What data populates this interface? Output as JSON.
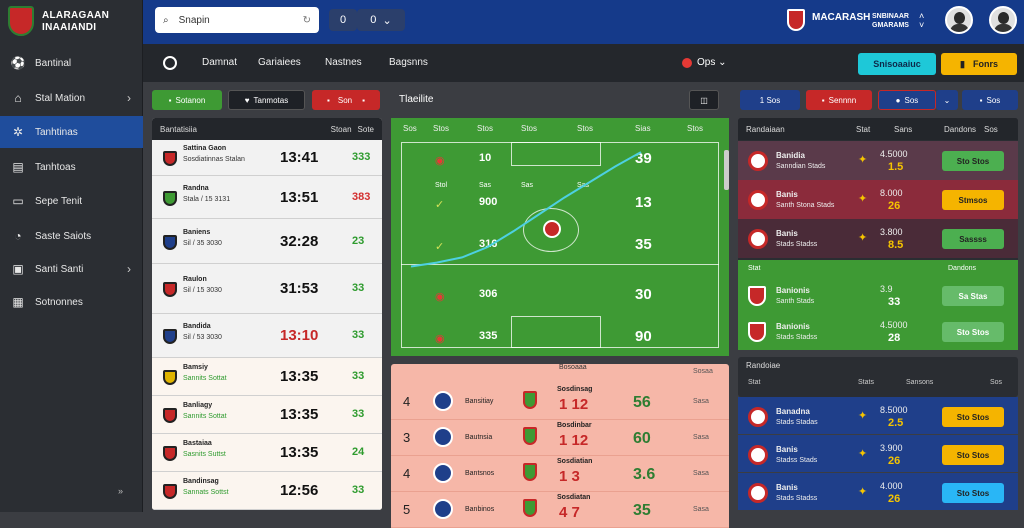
{
  "app": {
    "line1": "ALARAGAAN",
    "line2": "INAAIANDI"
  },
  "sidebar": {
    "items": [
      {
        "label": "Bantinal"
      },
      {
        "label": "Stal Mation"
      },
      {
        "label": "Tanhtinas"
      },
      {
        "label": "Tanhtoas"
      },
      {
        "label": "Sepe Tenit"
      },
      {
        "label": "Saste Saiots"
      },
      {
        "label": "Santi Santi"
      },
      {
        "label": "Sotnonnes"
      }
    ]
  },
  "search": {
    "placeholder": "Snapin"
  },
  "topbar": {
    "brand_title": "MACARASH",
    "brand_sub": "SNBINAAR",
    "brand_sub2": "GMARAMS",
    "icon_btn1": "0",
    "icon_btn2": "0"
  },
  "tabs": [
    {
      "label": "Damnat"
    },
    {
      "label": "Gariaiees"
    },
    {
      "label": "Nastnes"
    },
    {
      "label": "Bagsnns"
    }
  ],
  "tools": {
    "live_label": "Ops",
    "btn_cyan": "Snisoaaiuc",
    "btn_yellow": "Fonrs"
  },
  "filters": {
    "green": "Sotanon",
    "dark": "Tanmotas",
    "red": "Son",
    "title": "Tlaeilite",
    "r1": "1 Sos",
    "r2": "Sennnn",
    "r3": "Sos",
    "r4": "Sos"
  },
  "left_panel": {
    "head_left": "Bantatisiia",
    "head_right": "Stoan",
    "head_right2": "Sote",
    "rows": [
      {
        "team": "Sattina Gaon",
        "sub": "Sosdiatinnas Stalan",
        "score": "13:41",
        "odds": "333",
        "odds_color": "#2e9b2e"
      },
      {
        "team": "Randna",
        "sub": "Stala / 15 3131",
        "score": "13:51",
        "odds": "383",
        "odds_color": "#d32f2f"
      },
      {
        "team": "Baniens",
        "sub": "Sil / 35 3030",
        "score": "32:28",
        "odds": "23",
        "odds_color": "#2e9b2e"
      },
      {
        "team": "Raulon",
        "sub": "Sil / 15 3030",
        "score": "31:53",
        "odds": "33",
        "odds_color": "#2e9b2e"
      },
      {
        "team": "Bandida",
        "sub": "Sil / 53 3030",
        "score": "13:10",
        "odds": "33",
        "odds_color": "#2e9b2e"
      },
      {
        "team": "Bamsiy",
        "sub": "Sannits Sottat",
        "score": "13:35",
        "odds": "33",
        "odds_color": "#2e9b2e"
      },
      {
        "team": "Banliagy",
        "sub": "Sannits Sottat",
        "score": "13:35",
        "odds": "33",
        "odds_color": "#2e9b2e"
      },
      {
        "team": "Bastaiaa",
        "sub": "Sasnits Suttst",
        "score": "13:35",
        "odds": "24",
        "odds_color": "#2e9b2e"
      },
      {
        "team": "Bandinsag",
        "sub": "Sannats Sottst",
        "score": "12:56",
        "odds": "33",
        "odds_color": "#2e9b2e"
      }
    ]
  },
  "field": {
    "headers": [
      "Sos",
      "Stos",
      "Stos",
      "Stos",
      "Stos",
      "Sias",
      "Stos"
    ],
    "cells": [
      {
        "a": "10",
        "b": "39"
      },
      {
        "a": "900",
        "b": "13"
      },
      {
        "a": "316",
        "b": "35"
      },
      {
        "a": "306",
        "b": "30"
      },
      {
        "a": "335",
        "b": "90"
      }
    ],
    "sublabels": [
      "Stol",
      "Sas",
      "Sas",
      "Sas"
    ],
    "trend": [
      0.05,
      0.08,
      0.12,
      0.2,
      0.32,
      0.45,
      0.58,
      0.7,
      0.82,
      0.93
    ]
  },
  "salmon_list": {
    "head_left": "Bosoaaa",
    "head_right": "Sosaa",
    "rows": [
      {
        "num": "4",
        "team": "Bansitiay",
        "team2": "Sosdinsag",
        "score": "1 12",
        "result": "56",
        "odds": "Sasa"
      },
      {
        "num": "3",
        "team": "Bautnsia",
        "team2": "Bosdinbar",
        "score": "1 12",
        "result": "60",
        "odds": "Sasa"
      },
      {
        "num": "4",
        "team": "Bantsnos",
        "team2": "Sosdiatian",
        "score": "1 3",
        "result": "3.6",
        "odds": "Sasa"
      },
      {
        "num": "5",
        "team": "Banbinos",
        "team2": "Sosdiatan",
        "score": "4 7",
        "result": "35",
        "odds": "Sasa"
      }
    ]
  },
  "right_panel": {
    "head": "Randaiaan",
    "cols": [
      "Stat",
      "Sans",
      "Dandons",
      "Sos"
    ],
    "rows": [
      {
        "team": "Banidia",
        "sub": "Sanndian Stads",
        "n1": "4.5000",
        "n2": "1.5",
        "btn": "Sto Stos",
        "btn_color": "#4caf50",
        "bg": "#5a3a4a"
      },
      {
        "team": "Banis",
        "sub": "Santh Stona Stads",
        "n1": "8.000",
        "n2": "26",
        "btn": "Stmsos",
        "btn_color": "#f5b400",
        "bg": "#8b2b3b"
      },
      {
        "team": "Banis",
        "sub": "Stads Stadss",
        "n1": "3.800",
        "n2": "8.5",
        "btn": "Sassss",
        "btn_color": "#4caf50",
        "bg": "#4a2b38"
      },
      {
        "team": "Banionis",
        "sub": "Santh Stads",
        "n1": "3.9",
        "n2": "33",
        "btn": "Sa Stas",
        "btn_color": "#66bb6a",
        "bg": "#3e9a34"
      },
      {
        "team": "Banionis",
        "sub": "Stads Stadss",
        "n1": "4.5000",
        "n2": "28",
        "btn": "Sto Stos",
        "btn_color": "#66bb6a",
        "bg": "#3e9a34"
      }
    ],
    "head2": "Randoiae",
    "cols2": [
      "Stat",
      "Stats",
      "Sansons",
      "Sos"
    ],
    "rows2": [
      {
        "team": "Banadna",
        "sub": "Stads Stadas",
        "n1": "8.5000",
        "n2": "2.5",
        "btn": "Sto Stos",
        "btn_color": "#f5b400",
        "bg": "#1f3f8a"
      },
      {
        "team": "Banis",
        "sub": "Stadss Stads",
        "n1": "3.900",
        "n2": "26",
        "btn": "Sto Stos",
        "btn_color": "#f5b400",
        "bg": "#1f3f8a"
      },
      {
        "team": "Banis",
        "sub": "Stads Stadss",
        "n1": "4.000",
        "n2": "26",
        "btn": "Sto Stos",
        "btn_color": "#29b6f6",
        "bg": "#1f3f8a"
      }
    ]
  }
}
